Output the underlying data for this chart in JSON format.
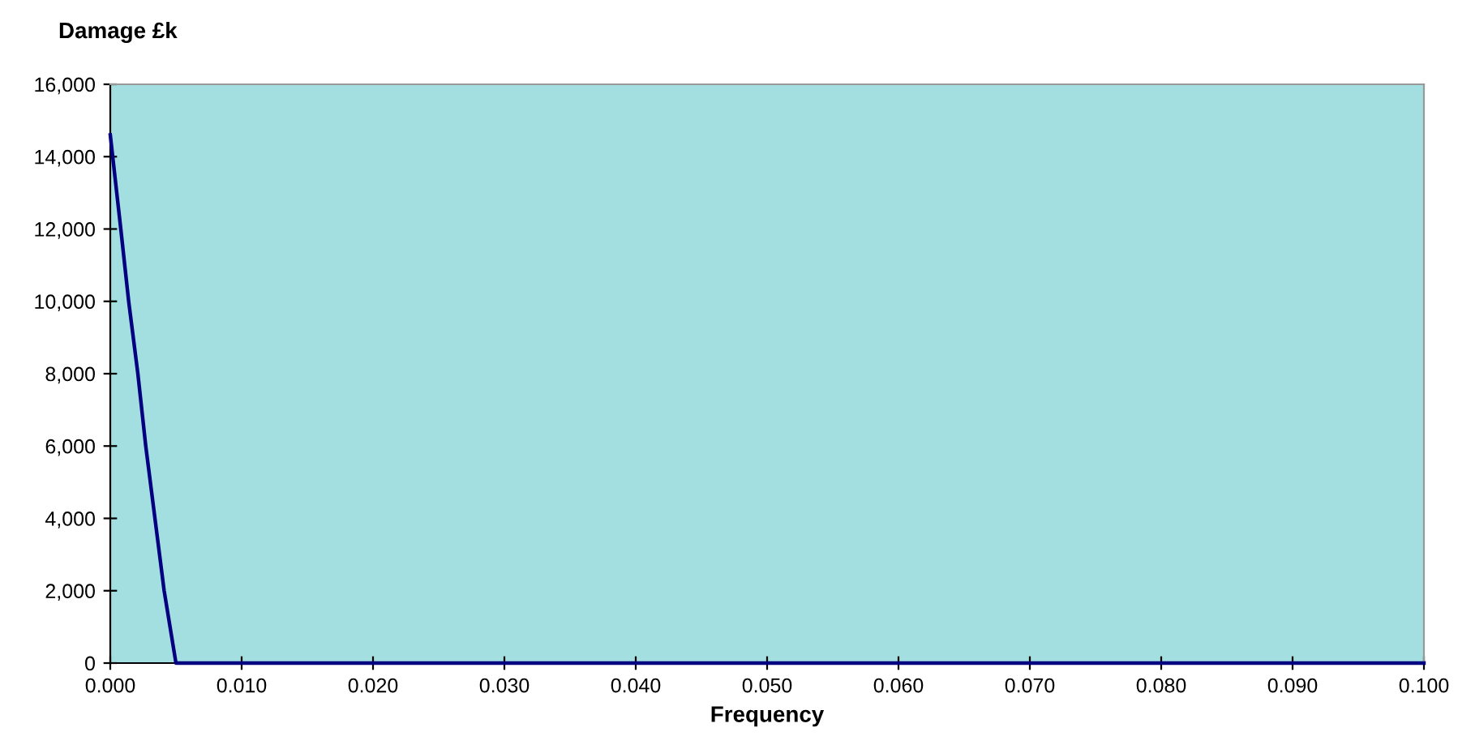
{
  "chart_data": {
    "type": "line",
    "ylabel": "Damage £k",
    "xlabel": "Frequency",
    "x": [
      0.0,
      0.0008,
      0.0014,
      0.0021,
      0.0027,
      0.0034,
      0.0041,
      0.005,
      0.0093,
      0.1
    ],
    "series": [
      {
        "color": "#000080",
        "values": [
          14600,
          12000,
          10000,
          8000,
          6000,
          4000,
          2000,
          0,
          0,
          0
        ]
      }
    ],
    "xlim": [
      0,
      0.1
    ],
    "xticks": [
      {
        "value": 0,
        "label": "0.000"
      },
      {
        "value": 0.01,
        "label": "0.010"
      },
      {
        "value": 0.02,
        "label": "0.020"
      },
      {
        "value": 0.03,
        "label": "0.030"
      },
      {
        "value": 0.04,
        "label": "0.040"
      },
      {
        "value": 0.05,
        "label": "0.050"
      },
      {
        "value": 0.06,
        "label": "0.060"
      },
      {
        "value": 0.07,
        "label": "0.070"
      },
      {
        "value": 0.08,
        "label": "0.080"
      },
      {
        "value": 0.09,
        "label": "0.090"
      },
      {
        "value": 0.1,
        "label": "0.100"
      }
    ],
    "ylim": [
      0,
      16000
    ],
    "yticks": [
      {
        "value": 0,
        "label": "0"
      },
      {
        "value": 2000,
        "label": "2,000"
      },
      {
        "value": 4000,
        "label": "4,000"
      },
      {
        "value": 6000,
        "label": "6,000"
      },
      {
        "value": 8000,
        "label": "8,000"
      },
      {
        "value": 10000,
        "label": "10,000"
      },
      {
        "value": 12000,
        "label": "12,000"
      },
      {
        "value": 14000,
        "label": "14,000"
      },
      {
        "value": 16000,
        "label": "16,000"
      }
    ],
    "grid": false,
    "legend": false,
    "marker": "none",
    "line_style": "solid"
  }
}
